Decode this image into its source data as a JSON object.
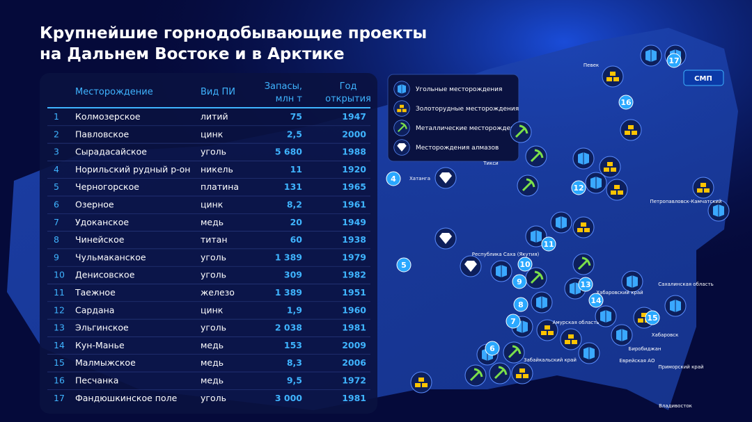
{
  "title": [
    "Крупнейшие горнодобывающие проекты",
    "на Дальнем Востоке и в Арктике"
  ],
  "table": {
    "header": [
      "Месторождение",
      "Вид ПИ",
      [
        "Запасы,",
        "млн т"
      ],
      [
        "Год",
        "открытия"
      ]
    ],
    "rows": [
      [
        "1",
        "Колмозерское",
        "литий",
        "75",
        "1947"
      ],
      [
        "2",
        "Павловское",
        "цинк",
        "2,5",
        "2000"
      ],
      [
        "3",
        "Сырадасайское",
        "уголь",
        "5 680",
        "1988"
      ],
      [
        "4",
        "Норильский рудный р-он",
        "никель",
        "11",
        "1920"
      ],
      [
        "5",
        "Черногорское",
        "платина",
        "131",
        "1965"
      ],
      [
        "6",
        "Озерное",
        "цинк",
        "8,2",
        "1961"
      ],
      [
        "7",
        "Удоканское",
        "медь",
        "20",
        "1949"
      ],
      [
        "8",
        "Чинейское",
        "титан",
        "60",
        "1938"
      ],
      [
        "9",
        "Чульмаканское",
        "уголь",
        "1 389",
        "1979"
      ],
      [
        "10",
        "Денисовское",
        "уголь",
        "309",
        "1982"
      ],
      [
        "11",
        "Таежное",
        "железо",
        "1 389",
        "1951"
      ],
      [
        "12",
        "Сардана",
        "цинк",
        "1,9",
        "1960"
      ],
      [
        "13",
        "Эльгинское",
        "уголь",
        "2 038",
        "1981"
      ],
      [
        "14",
        "Кун-Манье",
        "медь",
        "153",
        "2009"
      ],
      [
        "15",
        "Малмыжское",
        "медь",
        "8,3",
        "2006"
      ],
      [
        "16",
        "Песчанка",
        "медь",
        "9,5",
        "1972"
      ],
      [
        "17",
        "Фандюшкинское поле",
        "уголь",
        "3 000",
        "1981"
      ]
    ]
  },
  "legend": [
    "Угольные месторождения",
    "Золоторудные месторождения",
    "Металлические месторождения",
    "Месторождения алмазов"
  ],
  "button": "СМП",
  "markers": [
    "17",
    "16",
    "4",
    "12",
    "11",
    "5",
    "10",
    "9",
    "13",
    "14",
    "8",
    "7",
    "15",
    "6"
  ],
  "map_labels": [
    "Певек",
    "Тикси",
    "Хатанга",
    "Петропавловск-Камчатский",
    "Республика Саха (Якутия)",
    "Хабаровский край",
    "Сахалинская область",
    "Амурская область",
    "Хабаровск",
    "Биробиджан",
    "Еврейская АО",
    "Приморский край",
    "Владивосток",
    "Забайкальский край"
  ]
}
